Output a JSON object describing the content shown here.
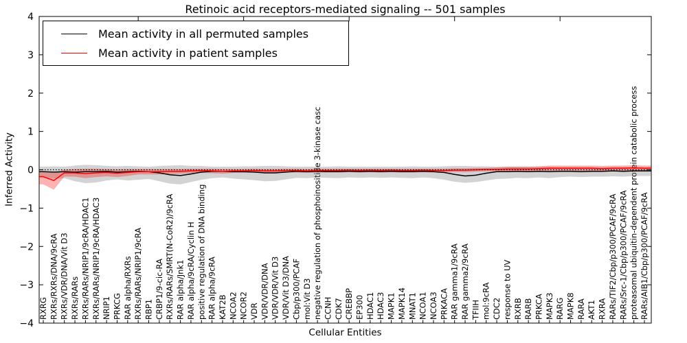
{
  "title": "Retinoic acid receptors-mediated signaling -- 501 samples",
  "axes": {
    "ylabel": "Inferred Activity",
    "xlabel": "Cellular Entities"
  },
  "legend": {
    "position": "upper left",
    "entries": [
      {
        "label": "Mean activity in all permuted samples",
        "color": "#000000"
      },
      {
        "label": "Mean activity in patient samples",
        "color": "#ff0000"
      }
    ]
  },
  "chart_data": {
    "type": "line",
    "title": "Retinoic acid receptors-mediated signaling -- 501 samples",
    "xlabel": "Cellular Entities",
    "ylabel": "Inferred Activity",
    "ylim": [
      -4,
      4
    ],
    "grid": false,
    "legend_position": "upper left",
    "reference_line_y": 0,
    "yticks": [
      {
        "value": 4,
        "label": "4"
      },
      {
        "value": 3,
        "label": "3"
      },
      {
        "value": 2,
        "label": "2"
      },
      {
        "value": 1,
        "label": "1"
      },
      {
        "value": 0,
        "label": "0"
      },
      {
        "value": -1,
        "label": "−1"
      },
      {
        "value": -2,
        "label": "−2"
      },
      {
        "value": -3,
        "label": "−3"
      },
      {
        "value": -4,
        "label": "−4"
      }
    ],
    "categories": [
      "RXRG",
      "RXRs/RXRs/DNA/9cRA",
      "RXRs/VDR/DNA/Vit D3",
      "RXRs/RARs",
      "RXRs/RARs/NRIP1/9cRA/HDAC1",
      "RXRs/RARs/NRIP1/9cRA/HDAC3",
      "NRIP1",
      "PRKCG",
      "RAR alpha/RXRs",
      "RXRs/RARs/NRIP1/9cRA",
      "RBP1",
      "CRBP1/9-cic-RA",
      "RXRs/RARs/SMRT(N-CoR2)/9cRA",
      "RAR alpha/Jnk1",
      "RAR alpha/9cRA/Cyclin H",
      "positive regulation of DNA binding",
      "RAR alpha/9cRA",
      "KAT2B",
      "NCOA2",
      "NCOR2",
      "VDR",
      "VDR/VDR/DNA",
      "VDR/VDR/Vit D3",
      "VDR/Vit D3/DNA",
      "Cbp/p300/PCAF",
      "mol:Vit D3",
      "negative regulation of phosphoinositide 3-kinase casc",
      "CCNH",
      "CDK7",
      "CREBBP",
      "EP300",
      "HDAC1",
      "HDAC3",
      "MAPK1",
      "MAPK14",
      "MNAT1",
      "NCOA1",
      "NCOA3",
      "PRKACA",
      "RAR gamma1/9cRA",
      "RAR gamma2/9cRA",
      "TFIIH",
      "mol:9cRA",
      "CDC2",
      "response to UV",
      "RXRB",
      "RARB",
      "PRKCA",
      "MAPK3",
      "RARG",
      "MAPK8",
      "RARA",
      "AKT1",
      "RXRA",
      "RARs/TIF2/Cbp/p300/PCAF/9cRA",
      "RARs/Src-1/Cbp/p300/PCAF/9cRA",
      "proteasomal ubiquitin-dependent protein catabolic process",
      "RARs/AIB1/Cbp/p300/PCAF/9cRA"
    ],
    "series": [
      {
        "name": "Mean activity in all permuted samples",
        "color": "#000000",
        "band_color": "rgba(128,128,128,0.35)",
        "values": [
          -0.05,
          -0.06,
          -0.05,
          -0.06,
          -0.05,
          -0.05,
          -0.04,
          -0.06,
          -0.05,
          -0.04,
          -0.05,
          -0.08,
          -0.13,
          -0.15,
          -0.11,
          -0.06,
          -0.04,
          -0.04,
          -0.05,
          -0.05,
          -0.06,
          -0.08,
          -0.08,
          -0.06,
          -0.04,
          -0.05,
          -0.04,
          -0.05,
          -0.05,
          -0.04,
          -0.05,
          -0.04,
          -0.05,
          -0.04,
          -0.05,
          -0.05,
          -0.04,
          -0.05,
          -0.07,
          -0.12,
          -0.16,
          -0.14,
          -0.09,
          -0.05,
          -0.05,
          -0.04,
          -0.05,
          -0.04,
          -0.05,
          -0.04,
          -0.04,
          -0.05,
          -0.04,
          -0.04,
          -0.03,
          -0.04,
          -0.03,
          -0.03
        ],
        "band_upper": [
          0.08,
          0.09,
          0.08,
          0.11,
          0.13,
          0.12,
          0.1,
          0.09,
          0.1,
          0.09,
          0.08,
          0.1,
          0.11,
          0.12,
          0.1,
          0.1,
          0.08,
          0.08,
          0.08,
          0.09,
          0.09,
          0.1,
          0.1,
          0.09,
          0.08,
          0.08,
          0.08,
          0.08,
          0.09,
          0.08,
          0.08,
          0.08,
          0.08,
          0.08,
          0.08,
          0.09,
          0.08,
          0.08,
          0.09,
          0.1,
          0.1,
          0.09,
          0.09,
          0.08,
          0.08,
          0.08,
          0.08,
          0.08,
          0.08,
          0.07,
          0.07,
          0.07,
          0.07,
          0.07,
          0.07,
          0.07,
          0.07,
          0.07
        ],
        "band_lower": [
          -0.2,
          -0.23,
          -0.22,
          -0.3,
          -0.35,
          -0.33,
          -0.28,
          -0.25,
          -0.28,
          -0.26,
          -0.24,
          -0.3,
          -0.36,
          -0.38,
          -0.32,
          -0.26,
          -0.22,
          -0.2,
          -0.23,
          -0.25,
          -0.27,
          -0.3,
          -0.29,
          -0.25,
          -0.21,
          -0.22,
          -0.2,
          -0.21,
          -0.22,
          -0.2,
          -0.21,
          -0.2,
          -0.21,
          -0.2,
          -0.21,
          -0.22,
          -0.2,
          -0.22,
          -0.26,
          -0.31,
          -0.34,
          -0.32,
          -0.28,
          -0.24,
          -0.23,
          -0.21,
          -0.22,
          -0.2,
          -0.22,
          -0.19,
          -0.18,
          -0.19,
          -0.18,
          -0.18,
          -0.17,
          -0.18,
          -0.16,
          -0.16
        ]
      },
      {
        "name": "Mean activity in patient samples",
        "color": "#ff0000",
        "band_color": "rgba(255,0,0,0.3)",
        "values": [
          -0.18,
          -0.28,
          -0.08,
          -0.08,
          -0.1,
          -0.08,
          -0.07,
          -0.09,
          -0.07,
          -0.05,
          -0.05,
          -0.05,
          -0.04,
          -0.04,
          -0.03,
          -0.02,
          -0.03,
          -0.04,
          -0.03,
          -0.03,
          -0.02,
          -0.03,
          -0.03,
          -0.02,
          -0.02,
          -0.03,
          -0.02,
          -0.02,
          -0.02,
          -0.01,
          -0.02,
          -0.01,
          -0.02,
          -0.01,
          -0.02,
          -0.02,
          -0.01,
          -0.02,
          -0.02,
          -0.01,
          -0.01,
          0.0,
          0.01,
          0.01,
          0.02,
          0.02,
          0.02,
          0.03,
          0.04,
          0.04,
          0.04,
          0.04,
          0.04,
          0.03,
          0.04,
          0.04,
          0.05,
          0.04
        ],
        "band_upper": [
          -0.05,
          -0.08,
          0.0,
          0.02,
          0.03,
          0.03,
          0.02,
          0.01,
          0.02,
          0.02,
          0.02,
          0.02,
          0.02,
          0.02,
          0.03,
          0.03,
          0.03,
          0.02,
          0.02,
          0.02,
          0.03,
          0.02,
          0.02,
          0.03,
          0.03,
          0.02,
          0.03,
          0.03,
          0.03,
          0.03,
          0.03,
          0.03,
          0.03,
          0.03,
          0.03,
          0.03,
          0.03,
          0.03,
          0.03,
          0.04,
          0.04,
          0.05,
          0.05,
          0.06,
          0.08,
          0.08,
          0.08,
          0.09,
          0.11,
          0.11,
          0.11,
          0.11,
          0.11,
          0.1,
          0.11,
          0.11,
          0.12,
          0.11
        ],
        "band_lower": [
          -0.38,
          -0.52,
          -0.18,
          -0.18,
          -0.22,
          -0.19,
          -0.17,
          -0.19,
          -0.16,
          -0.12,
          -0.12,
          -0.12,
          -0.11,
          -0.1,
          -0.09,
          -0.08,
          -0.09,
          -0.1,
          -0.08,
          -0.08,
          -0.07,
          -0.08,
          -0.08,
          -0.07,
          -0.07,
          -0.08,
          -0.07,
          -0.07,
          -0.07,
          -0.06,
          -0.07,
          -0.06,
          -0.07,
          -0.06,
          -0.07,
          -0.07,
          -0.06,
          -0.07,
          -0.07,
          -0.06,
          -0.06,
          -0.05,
          -0.04,
          -0.04,
          -0.04,
          -0.04,
          -0.04,
          -0.03,
          -0.03,
          -0.03,
          -0.03,
          -0.03,
          -0.03,
          -0.04,
          -0.03,
          -0.03,
          -0.02,
          -0.03
        ]
      }
    ]
  }
}
